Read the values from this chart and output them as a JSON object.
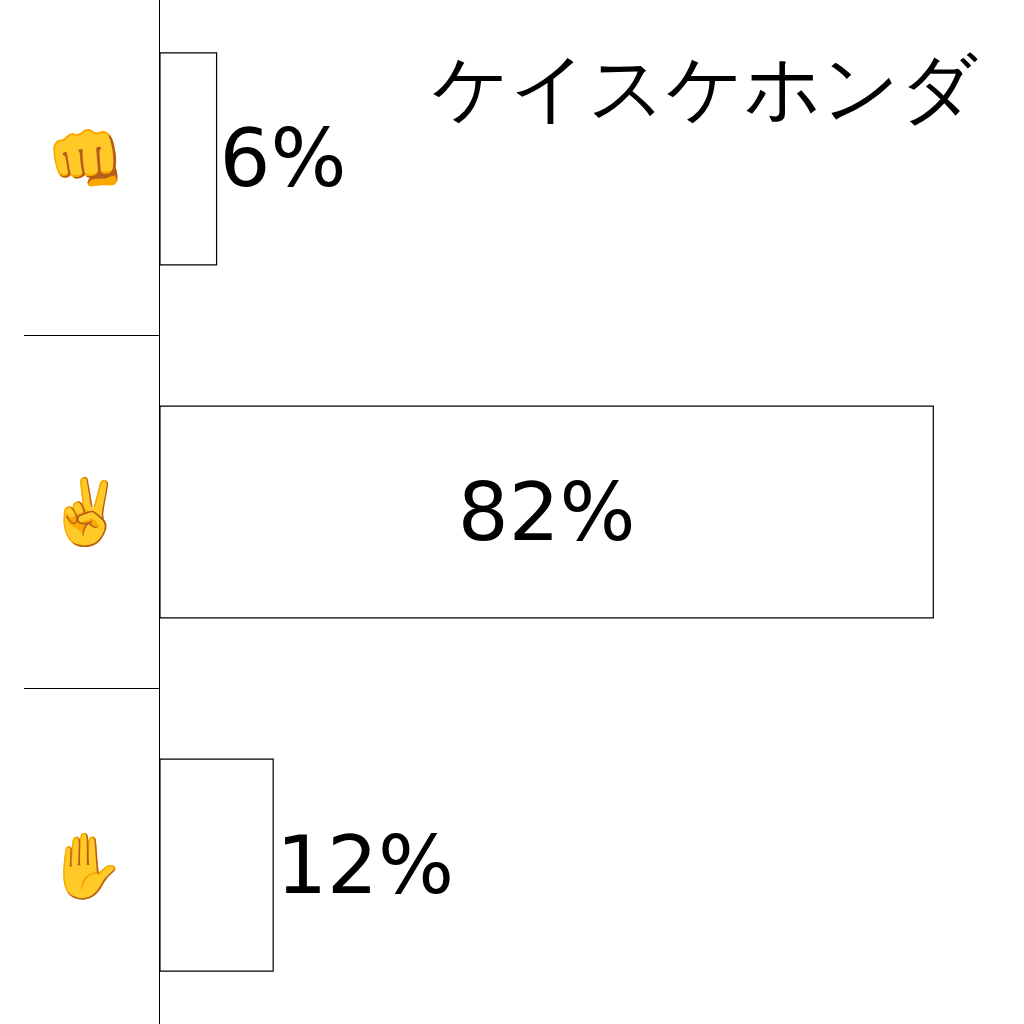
{
  "chart_data": {
    "type": "bar",
    "title": "ケイスケホンダ",
    "orientation": "horizontal",
    "categories": [
      "👊",
      "✌️",
      "✋"
    ],
    "values": [
      6,
      82,
      12
    ],
    "value_labels": [
      "6%",
      "82%",
      "12%"
    ],
    "color": "#ffffff",
    "tick_labels": "y"
  }
}
